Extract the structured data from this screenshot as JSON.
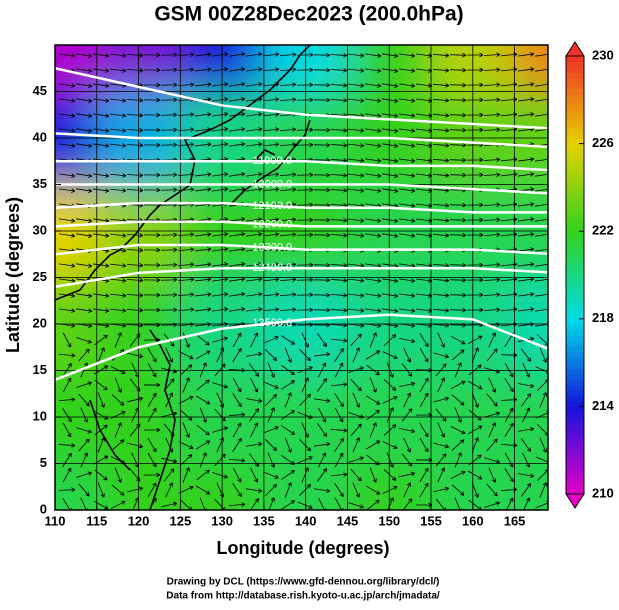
{
  "chart_data": {
    "type": "contour-map",
    "title": "GSM 00Z28Dec2023 (200.0hPa)",
    "x_label": "Longitude (degrees)",
    "y_label": "Latitude  (degrees)",
    "credits": [
      "Drawing by DCL (https://www.gfd-dennou.org/library/dcl/)",
      "Data from http://database.rish.kyoto-u.ac.jp/arch/jmadata/"
    ],
    "xlim": [
      110,
      169
    ],
    "ylim": [
      0,
      50
    ],
    "xticks": [
      110,
      115,
      120,
      125,
      130,
      135,
      140,
      145,
      150,
      155,
      160,
      165
    ],
    "yticks": [
      0,
      5,
      10,
      15,
      20,
      25,
      30,
      35,
      40,
      45
    ],
    "grid": true,
    "field": {
      "x": [
        110,
        120,
        130,
        140,
        150,
        160,
        170
      ],
      "y": [
        50,
        40,
        30,
        20,
        10,
        0
      ],
      "values": [
        [
          211,
          212,
          214,
          218,
          222,
          225,
          228
        ],
        [
          214,
          217,
          220,
          221,
          222,
          223,
          223
        ],
        [
          226,
          224,
          222,
          222,
          221,
          221,
          221
        ],
        [
          223,
          222,
          220,
          219,
          220,
          220,
          219
        ],
        [
          222,
          222,
          221,
          221,
          221,
          221,
          221
        ],
        [
          221,
          222,
          222,
          221,
          222,
          221,
          221
        ]
      ]
    },
    "colorbar": {
      "lim": [
        210,
        230
      ],
      "ticks": [
        210,
        214,
        218,
        222,
        226,
        230
      ]
    },
    "contour_x": [
      110,
      120,
      130,
      140,
      150,
      160,
      170
    ],
    "series": [
      {
        "color": "#ffffff",
        "values": [
          47.5,
          45.5,
          43.5,
          42.5,
          42,
          41.5,
          41
        ]
      },
      {
        "color": "#ffffff",
        "values": [
          40.5,
          40,
          40,
          40,
          40,
          39.5,
          39
        ]
      },
      {
        "name": "11900.0",
        "color": "#ffffff",
        "values": [
          37.5,
          37.5,
          37.5,
          37.5,
          37,
          37,
          36.5
        ]
      },
      {
        "name": "12000.0",
        "color": "#ffffff",
        "values": [
          35,
          35,
          35,
          35,
          35,
          34.5,
          34
        ]
      },
      {
        "name": "12100.0",
        "color": "#ffffff",
        "values": [
          32.5,
          33,
          33,
          32.5,
          32.5,
          32,
          32
        ]
      },
      {
        "name": "12200.0",
        "color": "#ffffff",
        "values": [
          30.5,
          31,
          31,
          30.5,
          30.5,
          30.5,
          30.5
        ]
      },
      {
        "name": "12300.0",
        "color": "#ffffff",
        "values": [
          27.5,
          28.5,
          28.5,
          28,
          28,
          28,
          27.5
        ]
      },
      {
        "name": "12400.0",
        "color": "#ffffff",
        "values": [
          24,
          25.5,
          26,
          26,
          26,
          26,
          25.5
        ]
      },
      {
        "name": "12500.0",
        "color": "#ffffff",
        "values": [
          14,
          17.5,
          19.5,
          20.5,
          21,
          20.5,
          17
        ]
      }
    ]
  }
}
